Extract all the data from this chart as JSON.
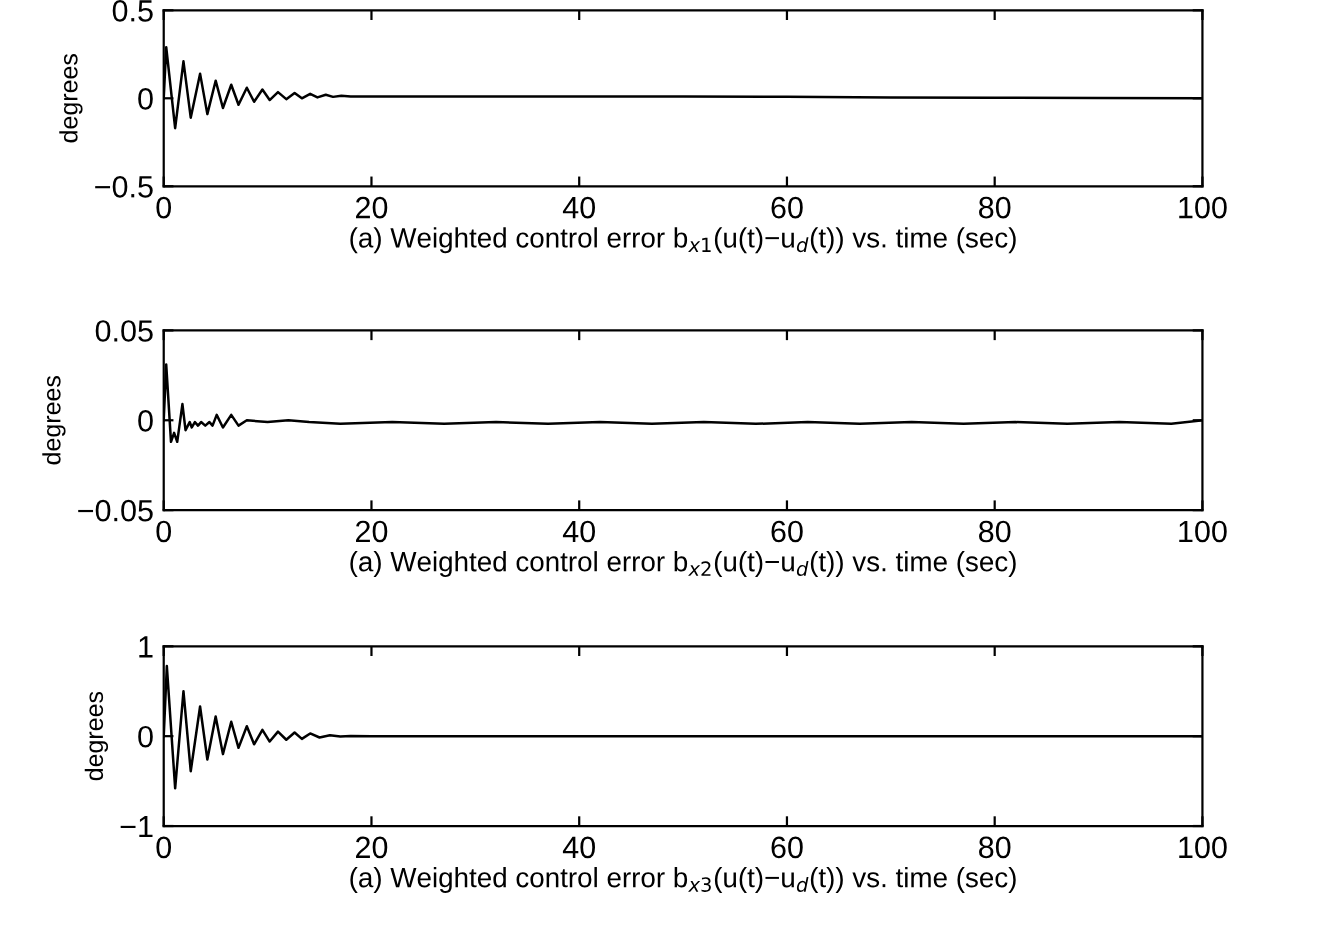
{
  "chart_data": [
    {
      "type": "line",
      "xlabel": "(a) Weighted control error b$_{x1}$(u(t)−u$_{d}$(t)) vs. time (sec)",
      "ylabel": "degrees",
      "xlim": [
        0,
        100
      ],
      "xticks": [
        0,
        20,
        40,
        60,
        80,
        100
      ],
      "ylim": [
        -0.5,
        0.5
      ],
      "yticks": [
        {
          "value": -0.5,
          "label": "−0.5"
        },
        0,
        0.5
      ],
      "grid": false,
      "legend": false,
      "series": [
        {
          "color": "#000000",
          "x": [
            0,
            0.24,
            1.1,
            1.9,
            2.6,
            3.5,
            4.2,
            5.0,
            5.7,
            6.5,
            7.2,
            8.0,
            8.7,
            9.5,
            10.2,
            11.0,
            11.8,
            12.6,
            13.3,
            14.1,
            14.8,
            15.6,
            16.3,
            17.1,
            18,
            20,
            30,
            40,
            50,
            60,
            70,
            80,
            90,
            100
          ],
          "values": [
            0,
            0.29,
            -0.17,
            0.21,
            -0.11,
            0.14,
            -0.09,
            0.1,
            -0.055,
            0.077,
            -0.037,
            0.06,
            -0.02,
            0.05,
            -0.01,
            0.035,
            -0.005,
            0.03,
            0,
            0.025,
            0.005,
            0.02,
            0.008,
            0.015,
            0.01,
            0.01,
            0.01,
            0.01,
            0.01,
            0.008,
            0.005,
            0.003,
            0.002,
            0
          ]
        }
      ]
    },
    {
      "type": "line",
      "xlabel": "(a) Weighted control error b$_{x2}$(u(t)−u$_{d}$(t)) vs. time (sec)",
      "ylabel": "degrees",
      "xlim": [
        0,
        100
      ],
      "xticks": [
        0,
        20,
        40,
        60,
        80,
        100
      ],
      "ylim": [
        -0.05,
        0.05
      ],
      "yticks": [
        {
          "value": -0.05,
          "label": "−0.05"
        },
        0,
        0.05
      ],
      "grid": false,
      "legend": false,
      "series": [
        {
          "color": "#000000",
          "x": [
            0,
            0.24,
            0.7,
            1.0,
            1.3,
            1.8,
            2.1,
            2.5,
            2.7,
            3.0,
            3.3,
            3.6,
            4.0,
            4.4,
            4.7,
            5.1,
            5.7,
            6.5,
            7.2,
            8.0,
            10,
            12,
            14,
            17,
            22,
            27,
            32,
            37,
            42,
            47,
            52,
            57,
            62,
            67,
            72,
            77,
            82,
            87,
            92,
            97,
            100
          ],
          "values": [
            0,
            0.031,
            -0.012,
            -0.007,
            -0.012,
            0.009,
            -0.0055,
            -0.001,
            -0.004,
            -0.001,
            -0.003,
            -0.001,
            -0.003,
            -0.001,
            -0.003,
            0.003,
            -0.004,
            0.003,
            -0.003,
            0,
            -0.001,
            0,
            -0.001,
            -0.002,
            -0.001,
            -0.002,
            -0.001,
            -0.002,
            -0.001,
            -0.002,
            -0.001,
            -0.002,
            -0.001,
            -0.002,
            -0.001,
            -0.002,
            -0.001,
            -0.002,
            -0.001,
            -0.002,
            0
          ]
        }
      ]
    },
    {
      "type": "line",
      "xlabel": "(a) Weighted control error b$_{x3}$(u(t)−u$_{d}$(t)) vs. time (sec)",
      "ylabel": "degrees",
      "xlim": [
        0,
        100
      ],
      "xticks": [
        0,
        20,
        40,
        60,
        80,
        100
      ],
      "ylim": [
        -1,
        1
      ],
      "yticks": [
        {
          "value": -1,
          "label": "−1"
        },
        0,
        1
      ],
      "grid": false,
      "legend": false,
      "series": [
        {
          "color": "#000000",
          "x": [
            0,
            0.3,
            1.1,
            1.9,
            2.6,
            3.5,
            4.2,
            5.0,
            5.7,
            6.5,
            7.2,
            8.0,
            8.7,
            9.5,
            10.2,
            11.0,
            11.8,
            12.6,
            13.3,
            14.1,
            15.0,
            16,
            17,
            18,
            20,
            40,
            60,
            80,
            100
          ],
          "values": [
            0,
            0.78,
            -0.58,
            0.5,
            -0.39,
            0.33,
            -0.26,
            0.22,
            -0.2,
            0.16,
            -0.13,
            0.11,
            -0.09,
            0.07,
            -0.06,
            0.05,
            -0.04,
            0.04,
            -0.03,
            0.03,
            -0.015,
            0.01,
            -0.005,
            0.003,
            0,
            0,
            0,
            0,
            0
          ]
        }
      ]
    }
  ]
}
